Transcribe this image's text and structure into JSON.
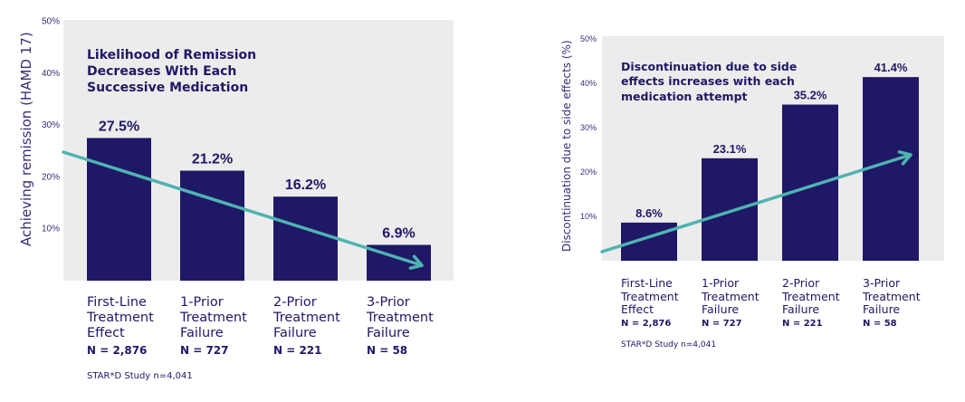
{
  "chart_data": [
    {
      "type": "bar",
      "title": "Likelihood of Remission\nDecreases With Each\nSuccessive Medication",
      "ylabel": "Achieving remission (HAMD 17)",
      "ylim": [
        0,
        50
      ],
      "yticks": [
        "10%",
        "20%",
        "30%",
        "40%",
        "50%"
      ],
      "categories": [
        "First-Line\nTreatment\nEffect",
        "1-Prior\nTreatment\nFailure",
        "2-Prior\nTreatment\nFailure",
        "3-Prior\nTreatment\nFailure"
      ],
      "n_labels": [
        "N = 2,876",
        "N = 727",
        "N = 221",
        "N = 58"
      ],
      "values": [
        27.5,
        21.2,
        16.2,
        6.9
      ],
      "value_labels": [
        "27.5%",
        "21.2%",
        "16.2%",
        "6.9%"
      ],
      "trend_arrow": "decreasing",
      "note": "STAR*D Study n=4,041",
      "grid": false,
      "colors": {
        "bar": "#1f1866",
        "arrow": "#4fb3b1",
        "background": "#ececec",
        "tick": "#3d2a78"
      }
    },
    {
      "type": "bar",
      "title": "Discontinuation due to side\neffects increases with each\nmedication attempt",
      "ylabel": "Discontinuation due to side effects (%)",
      "ylim": [
        0,
        50
      ],
      "yticks": [
        "10%",
        "20%",
        "30%",
        "40%",
        "50%"
      ],
      "categories": [
        "First-Line\nTreatment\nEffect",
        "1-Prior\nTreatment\nFailure",
        "2-Prior\nTreatment\nFailure",
        "3-Prior\nTreatment\nFailure"
      ],
      "n_labels": [
        "N = 2,876",
        "N = 727",
        "N = 221",
        "N = 58"
      ],
      "values": [
        8.6,
        23.1,
        35.2,
        41.4
      ],
      "value_labels": [
        "8.6%",
        "23.1%",
        "35.2%",
        "41.4%"
      ],
      "trend_arrow": "increasing",
      "note": "STAR*D Study n=4,041",
      "grid": false,
      "colors": {
        "bar": "#1f1866",
        "arrow": "#4fb3b1",
        "background": "#ececec",
        "tick": "#3d2a78"
      }
    }
  ]
}
